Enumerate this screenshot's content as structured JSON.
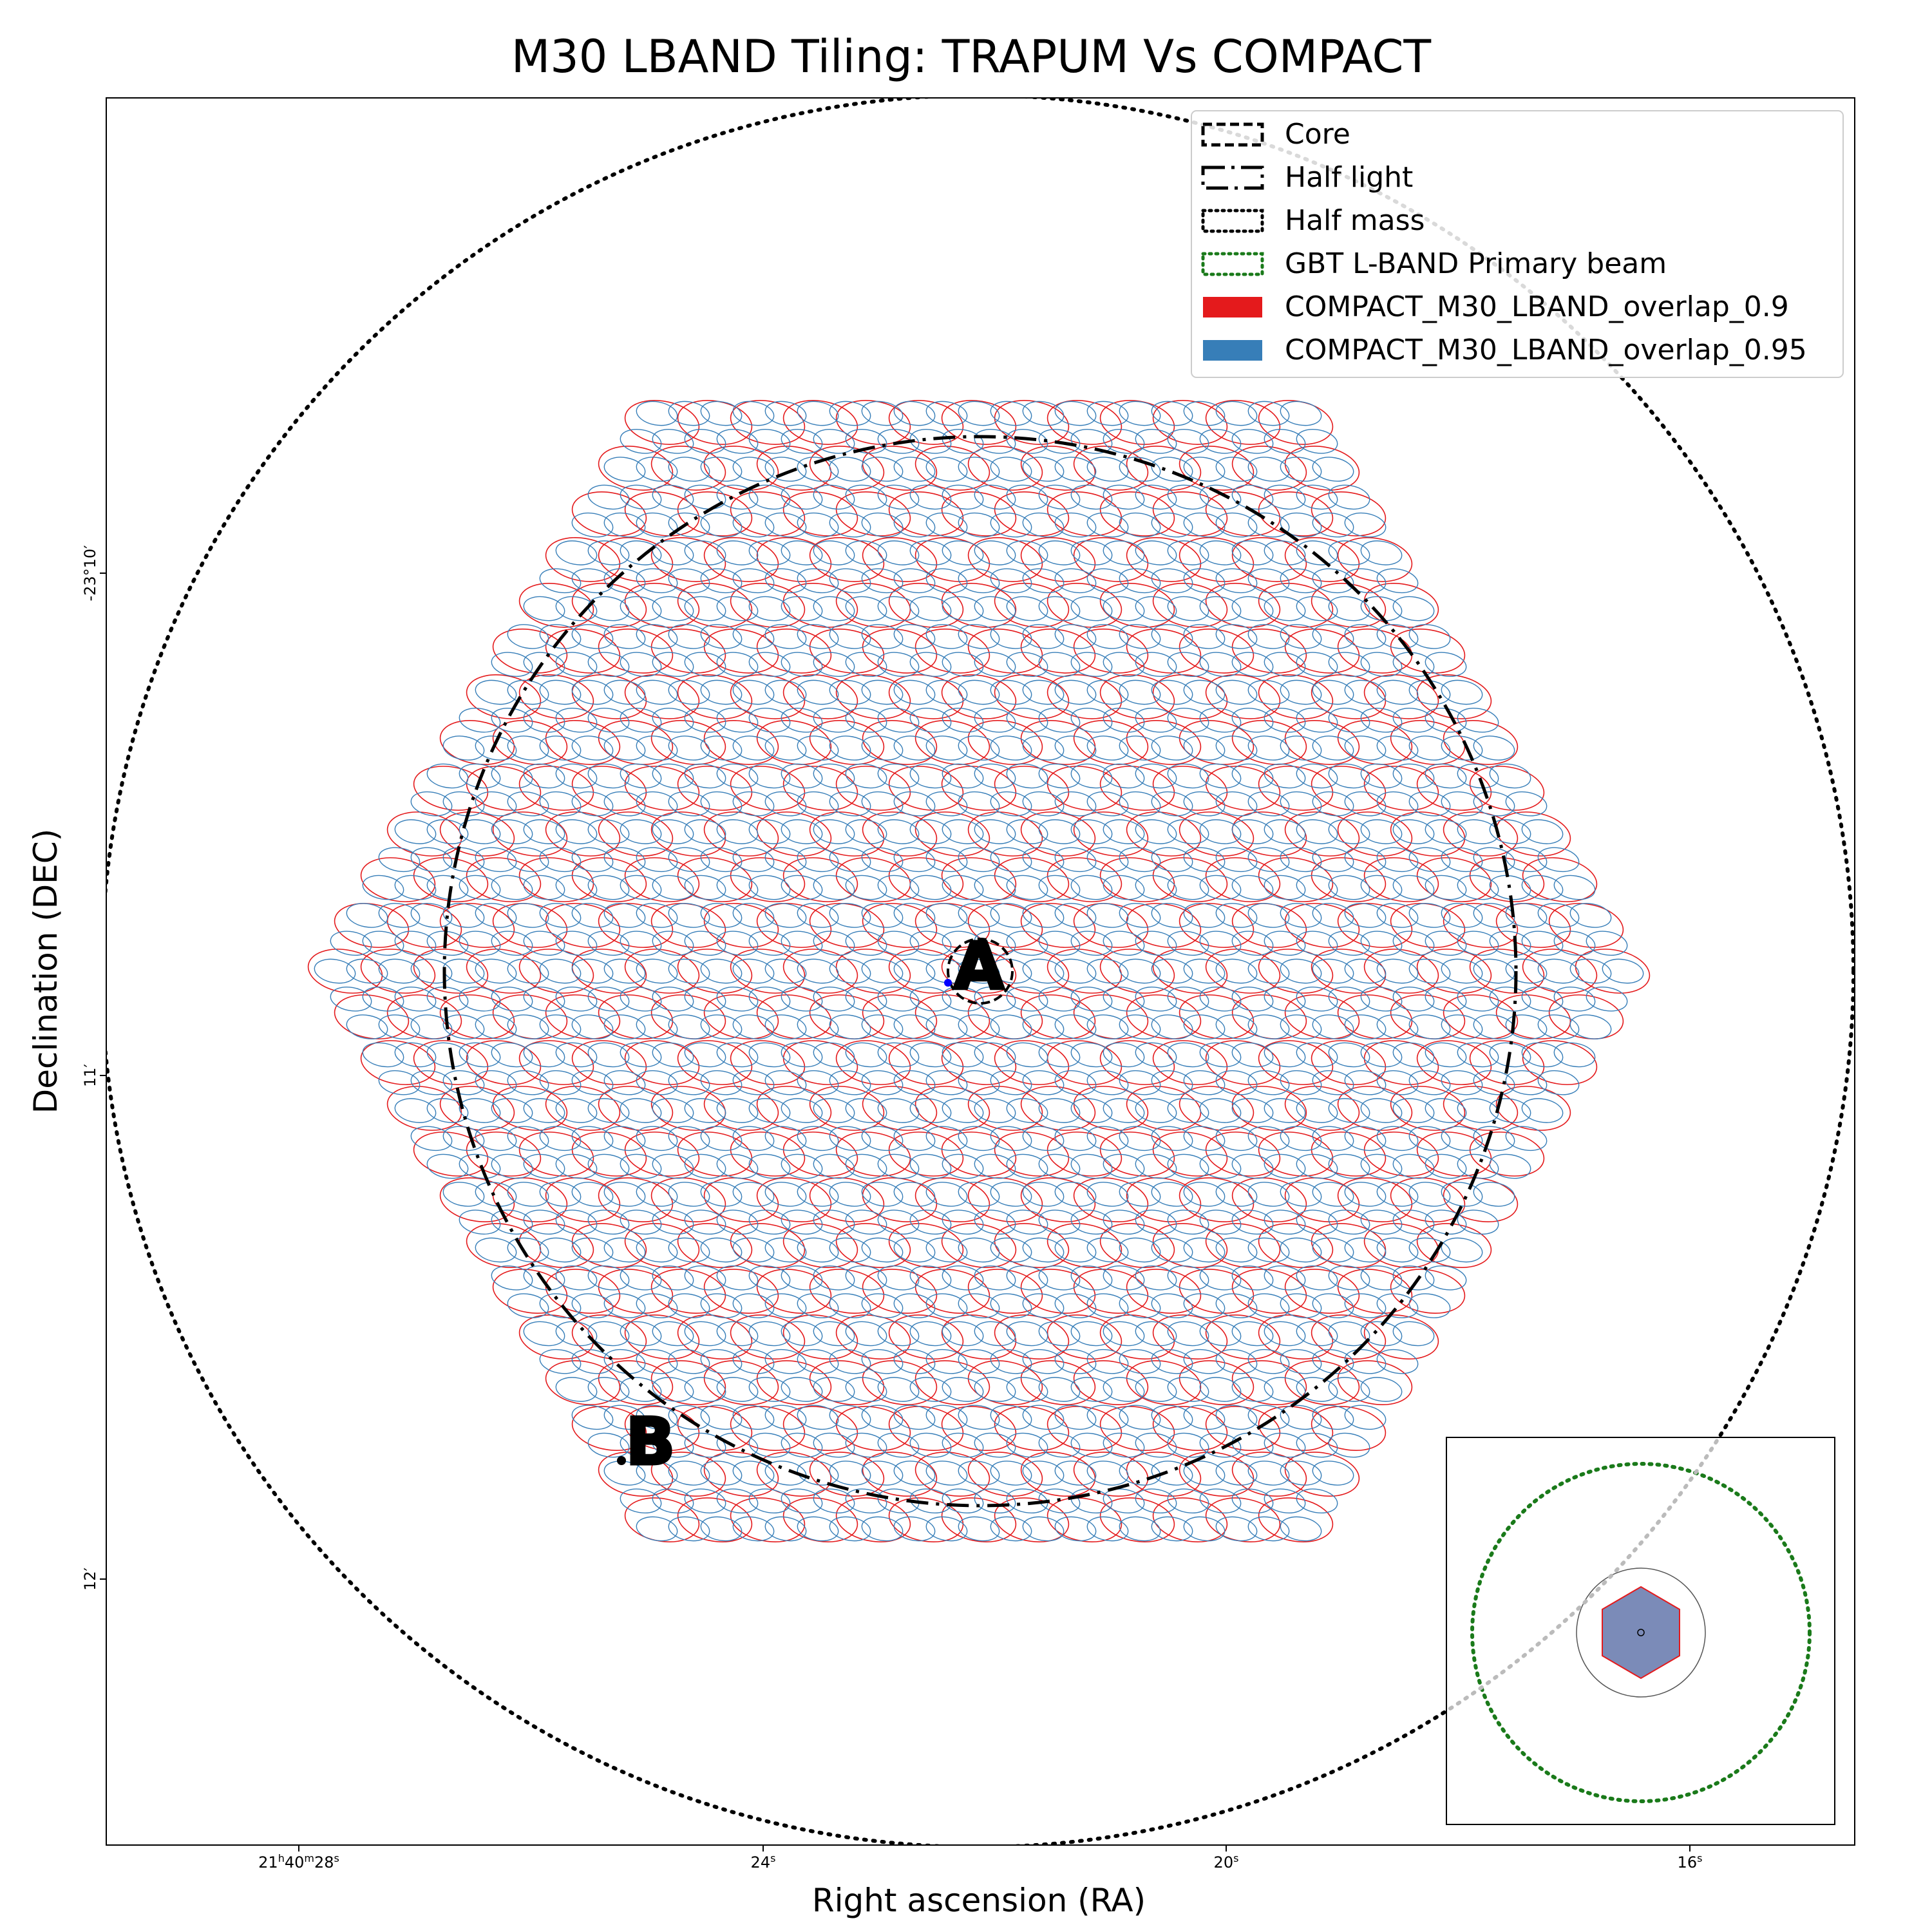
{
  "chart_data": {
    "type": "scatter",
    "title": "M30 LBAND Tiling: TRAPUM Vs COMPACT",
    "xlabel": "Right ascension (RA)",
    "ylabel": "Declination (DEC)",
    "x_ticks": [
      {
        "label_main": "21",
        "sup1": "h",
        "mid": "40",
        "sup2": "m",
        "tail": "28",
        "sup3": "s",
        "value_s": 28
      },
      {
        "label_main": "24",
        "sup1": "s",
        "value_s": 24
      },
      {
        "label_main": "20",
        "sup1": "s",
        "value_s": 20
      },
      {
        "label_main": "16",
        "sup1": "s",
        "value_s": 16
      }
    ],
    "y_ticks": [
      {
        "label": "-23°10′",
        "value_arcmin": -10
      },
      {
        "label": "11′",
        "value_arcmin": -11
      },
      {
        "label": "12′",
        "value_arcmin": -12
      }
    ],
    "legend": {
      "placement": "top-right",
      "entries": [
        {
          "label": "Core",
          "style": "dashed",
          "color": "#000000"
        },
        {
          "label": "Half light",
          "style": "dashdot",
          "color": "#000000"
        },
        {
          "label": "Half mass",
          "style": "dotted",
          "color": "#000000"
        },
        {
          "label": "GBT L-BAND Primary beam",
          "style": "dotted",
          "color": "#1a7a1a"
        },
        {
          "label": "COMPACT_M30_LBAND_overlap_0.9",
          "style": "patch",
          "color": "#e41a1c"
        },
        {
          "label": "COMPACT_M30_LBAND_overlap_0.95",
          "style": "patch",
          "color": "#377eb8"
        }
      ]
    },
    "annotations": [
      {
        "text": "A"
      },
      {
        "text": "B"
      }
    ],
    "series": [
      {
        "name": "COMPACT_M30_LBAND_overlap_0.9",
        "color": "#e41a1c",
        "pattern": "hexagonal tiling of elliptical beams"
      },
      {
        "name": "COMPACT_M30_LBAND_overlap_0.95",
        "color": "#377eb8",
        "pattern": "hexagonal tiling of elliptical beams"
      }
    ],
    "grid": false,
    "inset": {
      "placement": "bottom-right",
      "content": "zoomed-out view with GBT L-BAND primary beam"
    }
  }
}
